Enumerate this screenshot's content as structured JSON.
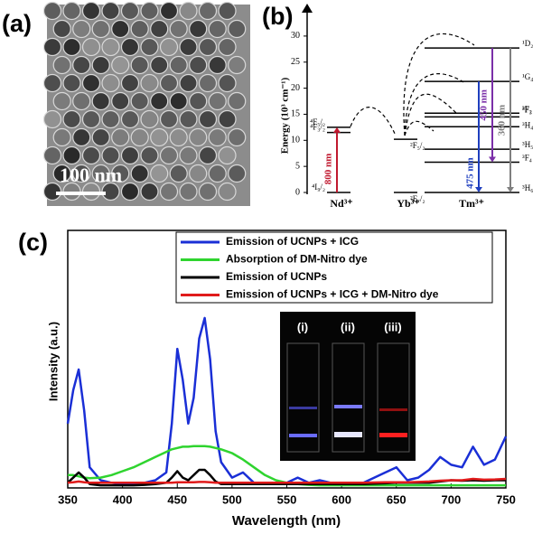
{
  "panel_a": {
    "label": "(a)",
    "scale_bar": "100 nm"
  },
  "panel_b": {
    "label": "(b)",
    "y_axis_label": "Energy (10³ cm⁻¹)",
    "yticks": [
      0,
      5,
      10,
      15,
      20,
      25,
      30
    ],
    "ions": [
      {
        "name": "Nd³⁺",
        "levels": [
          {
            "label": "⁴I₉/₂",
            "energy": 0
          },
          {
            "label": "⁴F₃/₂",
            "energy": 11.5
          },
          {
            "label": "⁴F₅/₂",
            "energy": 12.5
          }
        ]
      },
      {
        "name": "Yb³⁺",
        "levels": [
          {
            "label": "²F₇/₂",
            "energy": 0
          },
          {
            "label": "²F₅/₂",
            "energy": 10.2
          }
        ]
      },
      {
        "name": "Tm³⁺",
        "levels": [
          {
            "label": "³H₆",
            "energy": 0
          },
          {
            "label": "³F₄",
            "energy": 5.8
          },
          {
            "label": "³H₅",
            "energy": 8.3
          },
          {
            "label": "³H₄",
            "energy": 12.6
          },
          {
            "label": "³F₃",
            "energy": 14.5
          },
          {
            "label": "³F₂",
            "energy": 15.2
          },
          {
            "label": "¹G₄",
            "energy": 21.3
          },
          {
            "label": "¹D₂",
            "energy": 27.7
          }
        ]
      }
    ],
    "transitions": [
      {
        "label": "800 nm",
        "color": "#c0192f"
      },
      {
        "label": "475 nm",
        "color": "#1f3fbf"
      },
      {
        "label": "450 nm",
        "color": "#7b2fa8"
      },
      {
        "label": "360 nm",
        "color": "#7f7f7f"
      }
    ]
  },
  "chart_data": {
    "type": "line",
    "label": "(c)",
    "x_label": "Wavelength (nm)",
    "y_label": "Intensity (a.u.)",
    "xlim": [
      350,
      750
    ],
    "xticks": [
      350,
      400,
      450,
      500,
      550,
      600,
      650,
      700,
      750
    ],
    "ylim": [
      0,
      100
    ],
    "x": [
      350,
      355,
      360,
      365,
      370,
      380,
      390,
      400,
      410,
      420,
      430,
      440,
      445,
      450,
      455,
      460,
      465,
      470,
      475,
      480,
      485,
      490,
      500,
      510,
      520,
      530,
      540,
      550,
      560,
      570,
      580,
      590,
      600,
      620,
      640,
      650,
      660,
      670,
      680,
      690,
      700,
      710,
      720,
      730,
      740,
      750
    ],
    "series": [
      {
        "name": "Emission of UCNPs + ICG",
        "color": "#1a2fd6",
        "values": [
          25,
          38,
          46,
          30,
          8,
          3,
          2,
          1.5,
          1.5,
          2,
          3,
          6,
          25,
          54,
          42,
          25,
          35,
          58,
          66,
          50,
          22,
          10,
          4,
          6,
          2,
          2,
          1.5,
          2,
          4,
          2,
          3,
          2,
          1,
          2,
          6,
          8,
          3,
          4,
          7,
          12,
          9,
          8,
          16,
          9,
          11,
          20
        ]
      },
      {
        "name": "Absorption of DM-Nitro dye",
        "color": "#2fd42f",
        "values": [
          5,
          5,
          4.5,
          4,
          3.8,
          4,
          5,
          6.5,
          8,
          10,
          12,
          14,
          15,
          15.5,
          16,
          16,
          16.2,
          16.2,
          16.2,
          16,
          15.5,
          15,
          13.5,
          11,
          8,
          5,
          3,
          2,
          1.5,
          1.2,
          1,
          1,
          1,
          1,
          1,
          1,
          1,
          1,
          1,
          1,
          1,
          1,
          1,
          1,
          1,
          1
        ]
      },
      {
        "name": "Emission of UCNPs",
        "color": "#000000",
        "values": [
          2,
          4,
          6,
          4,
          1.5,
          1,
          1,
          1,
          1,
          1.2,
          1.5,
          2,
          4,
          6.5,
          4,
          3,
          5,
          7,
          7,
          5,
          2.5,
          1.5,
          1.5,
          1.5,
          1.5,
          1.5,
          1.5,
          1.5,
          1.5,
          1.5,
          1.5,
          1.5,
          1.5,
          1.5,
          1.8,
          2,
          2,
          2,
          2,
          2.5,
          3,
          2.8,
          3,
          2.8,
          3,
          3
        ]
      },
      {
        "name": "Emission of UCNPs + ICG + DM-Nitro dye",
        "color": "#e01b1b",
        "values": [
          2,
          2.2,
          2.5,
          2.2,
          2,
          2,
          2,
          2,
          2,
          2,
          2,
          2,
          2,
          2.2,
          2.2,
          2.2,
          2.2,
          2.3,
          2.3,
          2.2,
          2,
          2,
          2,
          2,
          2,
          2,
          2,
          2,
          2,
          2,
          2,
          2,
          2,
          2,
          2.2,
          2.2,
          2.2,
          2.3,
          2.5,
          2.8,
          3,
          3,
          3.5,
          3.2,
          3.3,
          3.5
        ]
      }
    ]
  },
  "inset": {
    "labels": [
      "(i)",
      "(ii)",
      "(iii)"
    ]
  }
}
